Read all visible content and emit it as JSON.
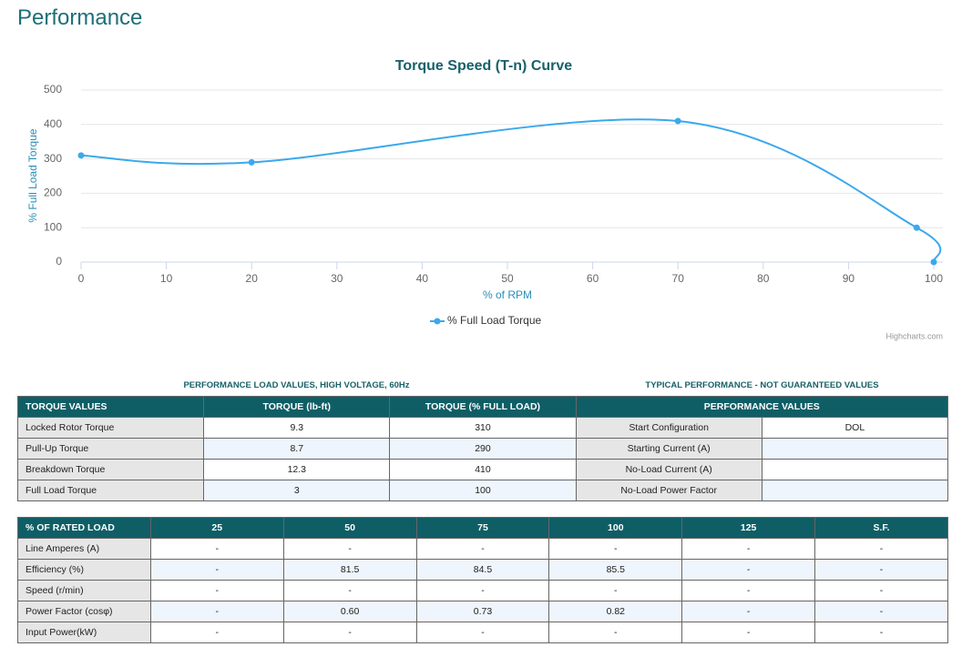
{
  "header": {
    "title": "Performance"
  },
  "chart_data": {
    "type": "line",
    "title": "Torque Speed (T-n) Curve",
    "x_label": "% of RPM",
    "y_label": "% Full Load Torque",
    "x": [
      0,
      20,
      70,
      98,
      100
    ],
    "series": [
      {
        "name": "% Full Load Torque",
        "color": "#3aa9ec",
        "values": [
          310,
          290,
          410,
          100,
          0
        ]
      }
    ],
    "xlim": [
      0,
      100
    ],
    "xticks": [
      0,
      10,
      20,
      30,
      40,
      50,
      60,
      70,
      80,
      90,
      100
    ],
    "ylim": [
      0,
      500
    ],
    "yticks": [
      0,
      100,
      200,
      300,
      400,
      500
    ],
    "grid": true,
    "credits": "Highcharts.com"
  },
  "torque_table": {
    "caption": "PERFORMANCE LOAD VALUES, HIGH VOLTAGE, 60Hz",
    "right_caption": "TYPICAL PERFORMANCE - NOT GUARANTEED VALUES",
    "headers": [
      "TORQUE VALUES",
      "TORQUE (lb-ft)",
      "TORQUE (% FULL LOAD)",
      "PERFORMANCE VALUES"
    ],
    "rows": [
      [
        "Locked Rotor Torque",
        "9.3",
        "310"
      ],
      [
        "Pull-Up Torque",
        "8.7",
        "290"
      ],
      [
        "Breakdown Torque",
        "12.3",
        "410"
      ],
      [
        "Full Load Torque",
        "3",
        "100"
      ]
    ],
    "right_rows": [
      [
        "Start Configuration",
        "DOL"
      ],
      [
        "Starting Current (A)"
      ],
      [
        "No-Load Current (A)"
      ],
      [
        "No-Load Power Factor"
      ]
    ]
  },
  "load_table": {
    "headers": [
      "% OF RATED LOAD",
      "25",
      "50",
      "75",
      "100",
      "125",
      "S.F."
    ],
    "rows": [
      [
        "Line Amperes (A)",
        "-",
        "-",
        "-",
        "-",
        "-",
        "-"
      ],
      [
        "Efficiency (%)",
        "-",
        "81.5",
        "84.5",
        "85.5",
        "-",
        "-"
      ],
      [
        "Speed (r/min)",
        "-",
        "-",
        "-",
        "-",
        "-",
        "-"
      ],
      [
        "Power Factor (cosφ)",
        "-",
        "0.60",
        "0.73",
        "0.82",
        "-",
        "-"
      ],
      [
        "Input Power(kW)",
        "-",
        "-",
        "-",
        "-",
        "-",
        "-"
      ]
    ]
  }
}
